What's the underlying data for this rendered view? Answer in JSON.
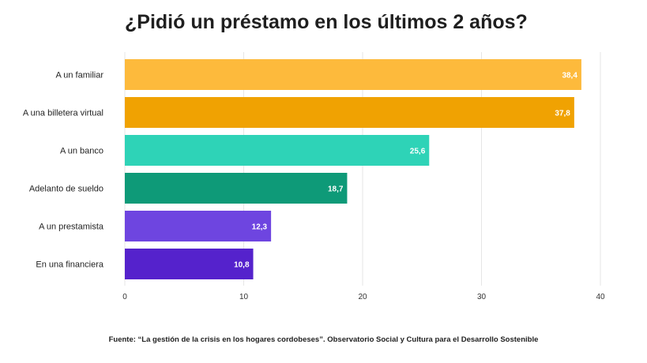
{
  "chart_data": {
    "type": "bar",
    "orientation": "horizontal",
    "title": "¿Pidió un préstamo en los últimos 2 años?",
    "categories": [
      "A un familiar",
      "A una billetera virtual",
      "A un banco",
      "Adelanto de sueldo",
      "A un prestamista",
      "En una financiera"
    ],
    "values": [
      38.4,
      37.8,
      25.6,
      18.7,
      12.3,
      10.8
    ],
    "value_labels": [
      "38,4",
      "37,8",
      "25,6",
      "18,7",
      "12,3",
      "10,8"
    ],
    "colors": [
      "#FDBA3C",
      "#F0A202",
      "#2ED3B7",
      "#0E9A78",
      "#6E45E0",
      "#5522CC"
    ],
    "xlim": [
      0,
      40
    ],
    "x_ticks": [
      "0",
      "10",
      "20",
      "30",
      "40"
    ],
    "xlabel": "",
    "ylabel": "",
    "grid": true,
    "legend": "none"
  },
  "source": "Fuente: “La gestión de la crisis en los hogares cordobeses”. Observatorio Social y Cultura para el Desarrollo Sostenible"
}
